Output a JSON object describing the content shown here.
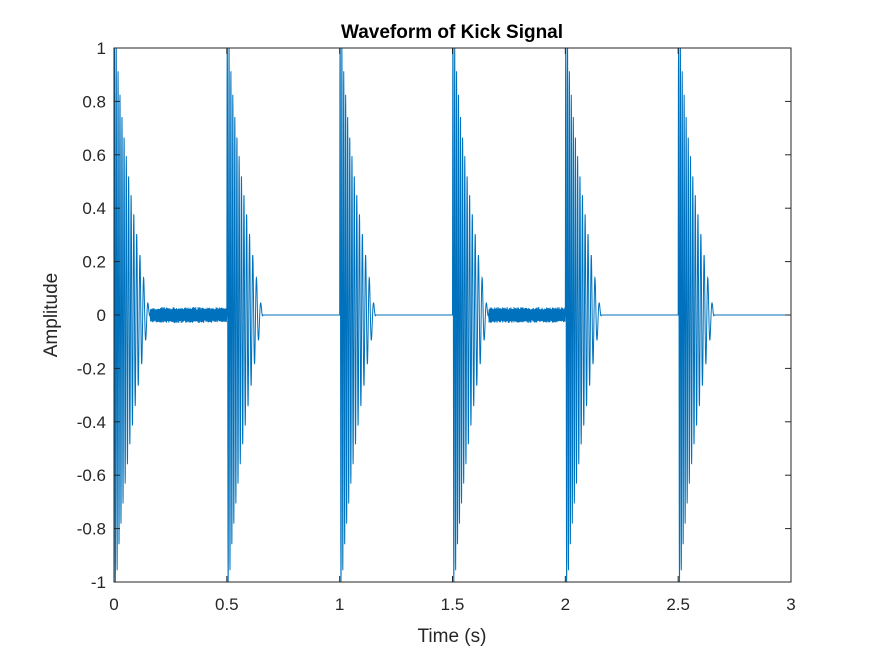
{
  "chart_data": {
    "type": "line",
    "title": "Waveform of Kick Signal",
    "xlabel": "Time (s)",
    "ylabel": "Amplitude",
    "xlim": [
      0,
      3
    ],
    "ylim": [
      -1,
      1
    ],
    "xticks": [
      0,
      0.5,
      1,
      1.5,
      2,
      2.5,
      3
    ],
    "xtick_labels": [
      "0",
      "0.5",
      "1",
      "1.5",
      "2",
      "2.5",
      "3"
    ],
    "yticks": [
      -1,
      -0.8,
      -0.6,
      -0.4,
      -0.2,
      0,
      0.2,
      0.4,
      0.6,
      0.8,
      1
    ],
    "ytick_labels": [
      "-1",
      "-0.8",
      "-0.6",
      "-0.4",
      "-0.2",
      "0",
      "0.2",
      "0.4",
      "0.6",
      "0.8",
      "1"
    ],
    "grid": false,
    "line_color": "#0072BD",
    "series": [
      {
        "kick_onsets_s": [
          0,
          0.5,
          1.0,
          1.5,
          2.0,
          2.5
        ],
        "kick_peak_amplitude": 1,
        "kick_decay_s": 0.16,
        "tail_noise_amplitude": [
          0.03,
          0.0,
          0.0,
          0.03,
          0.0,
          0.0
        ],
        "tail_end_s": [
          0.5,
          0.55,
          1.05,
          2.0,
          2.1,
          2.65
        ]
      }
    ]
  }
}
